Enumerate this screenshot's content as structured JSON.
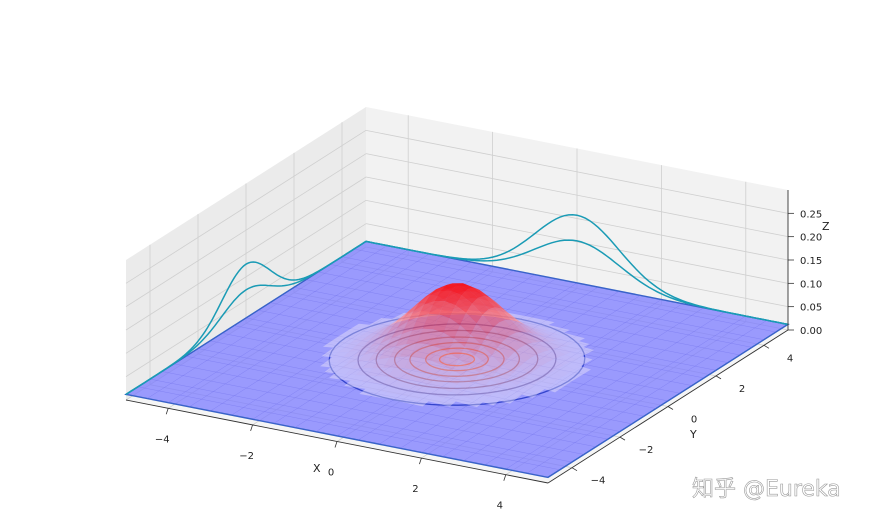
{
  "chart_data": {
    "type": "surface3d",
    "title": "",
    "function": "bivariate normal density",
    "xlabel": "X",
    "ylabel": "Y",
    "zlabel": "Z",
    "xlim": [
      -5,
      5
    ],
    "ylim": [
      -5,
      5
    ],
    "zlim": [
      0,
      0.3
    ],
    "x_ticks": [
      "−4",
      "−2",
      "0",
      "2",
      "4"
    ],
    "y_ticks": [
      "−4",
      "−2",
      "0",
      "2",
      "4"
    ],
    "z_ticks": [
      "0.00",
      "0.05",
      "0.10",
      "0.15",
      "0.20",
      "0.25"
    ],
    "peak": {
      "x": 0,
      "y": 0,
      "z": 0.16
    },
    "surface_cmap": "bwr",
    "base_plane_color": "#7b7bff",
    "marginal_profiles": [
      {
        "name": "",
        "wall": "x-wall",
        "peak": 0.115
      },
      {
        "name": "",
        "wall": "x-wall",
        "peak": 0.06
      },
      {
        "name": "",
        "wall": "y-wall",
        "peak": 0.145
      },
      {
        "name": "",
        "wall": "y-wall",
        "peak": 0.09
      }
    ],
    "contour_levels": [
      0.005,
      0.02,
      0.04,
      0.07,
      0.1,
      0.13,
      0.15
    ],
    "grid": true
  },
  "watermark": "知乎 @Eureka",
  "colors": {
    "pane": "#f2f2f2",
    "pane_side": "#ebebeb",
    "grid": "#cfcfcf",
    "profile": "#1a9bb5",
    "contour_low": "#3344cc",
    "contour_high": "#d05050"
  }
}
